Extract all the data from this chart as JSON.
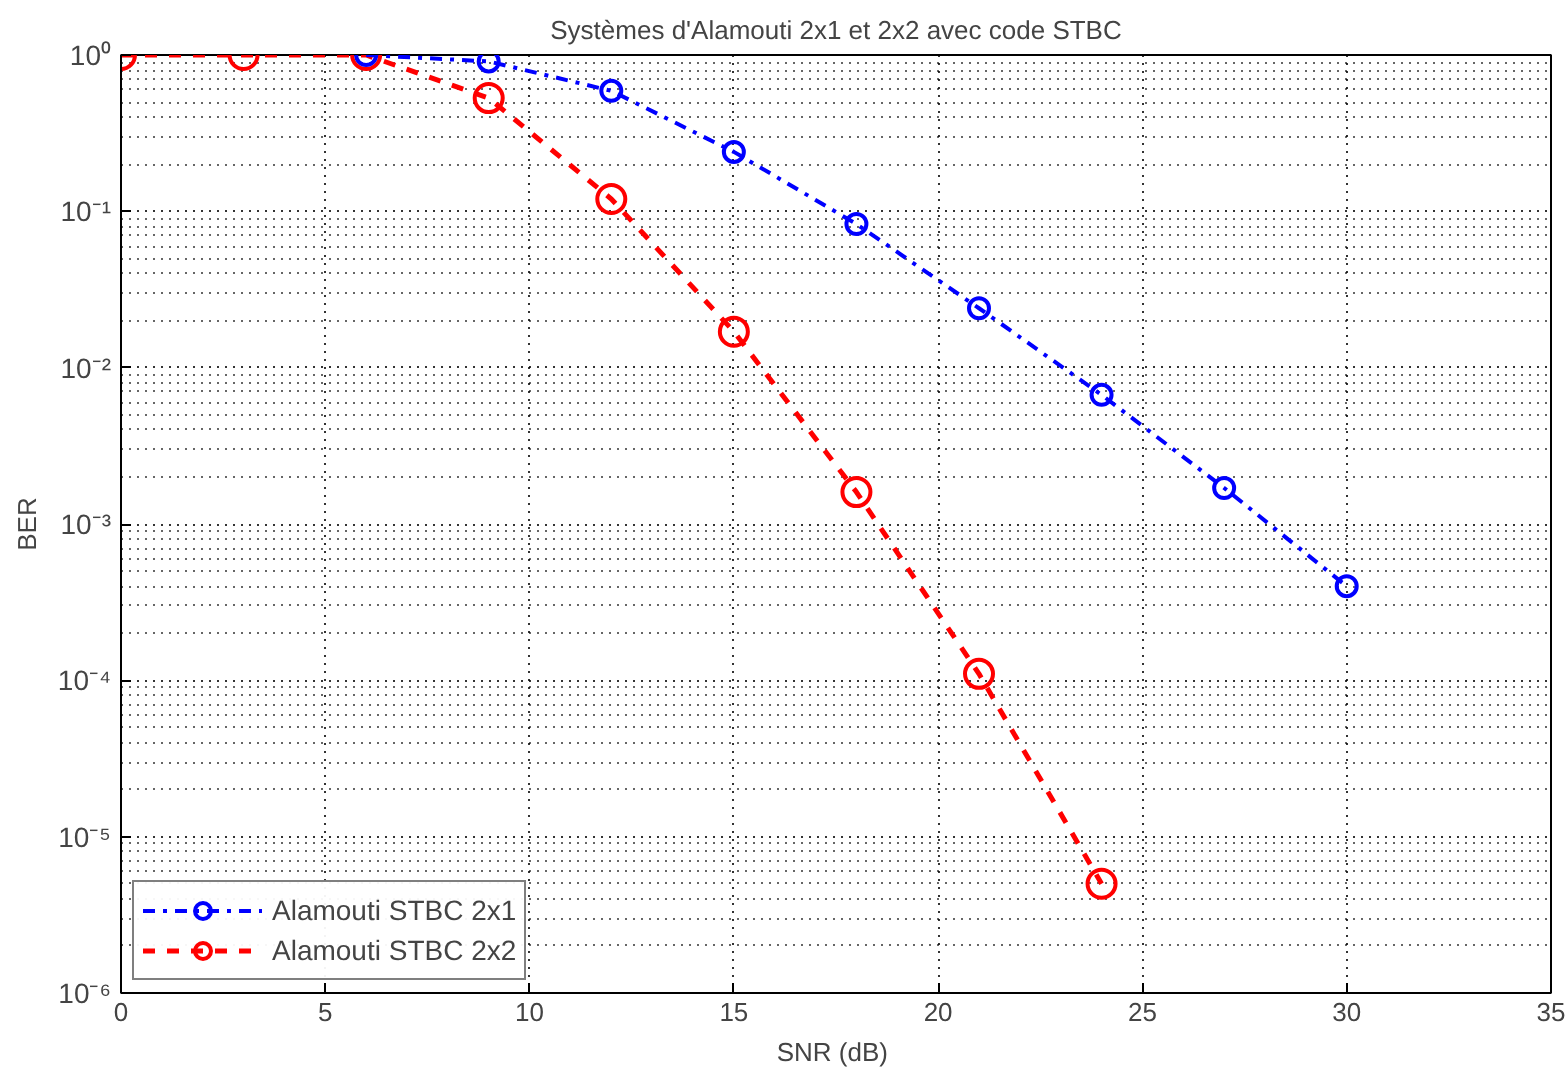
{
  "chart_data": {
    "type": "line",
    "title": "Systèmes d'Alamouti 2x1 et 2x2 avec code STBC",
    "xlabel": "SNR  (dB)",
    "ylabel": "BER",
    "series": [
      {
        "name": "Alamouti STBC 2x1",
        "color": "#0000ff",
        "line_style": "dashdot",
        "x": [
          6,
          9,
          12,
          15,
          18,
          21,
          24,
          27,
          30
        ],
        "values": [
          1,
          0.91,
          0.59,
          0.24,
          0.083,
          0.024,
          0.0067,
          0.0017,
          0.0004
        ]
      },
      {
        "name": "Alamouti STBC 2x2",
        "color": "#ff0000",
        "line_style": "dashed",
        "x": [
          0,
          3,
          6,
          9,
          12,
          15,
          18,
          21,
          24
        ],
        "values": [
          1,
          1,
          1,
          0.53,
          0.12,
          0.017,
          0.0016,
          0.00011,
          5e-06
        ]
      }
    ],
    "log": "y",
    "marker": "circle",
    "grid": true,
    "legend": "bottom left",
    "xlim": [
      0,
      35
    ],
    "xticks": [
      0,
      5,
      10,
      15,
      20,
      25,
      30,
      35
    ],
    "ylim": [
      1e-06,
      1
    ],
    "yticks": [
      {
        "value": 1e-06,
        "label": "10⁻⁶"
      },
      {
        "value": 1e-05,
        "label": "10⁻⁵"
      },
      {
        "value": 0.0001,
        "label": "10⁻⁴"
      },
      {
        "value": 0.001,
        "label": "10⁻³"
      },
      {
        "value": 0.01,
        "label": "10⁻²"
      },
      {
        "value": 0.1,
        "label": "10⁻¹"
      },
      {
        "value": 1,
        "label": "10⁰"
      }
    ]
  }
}
